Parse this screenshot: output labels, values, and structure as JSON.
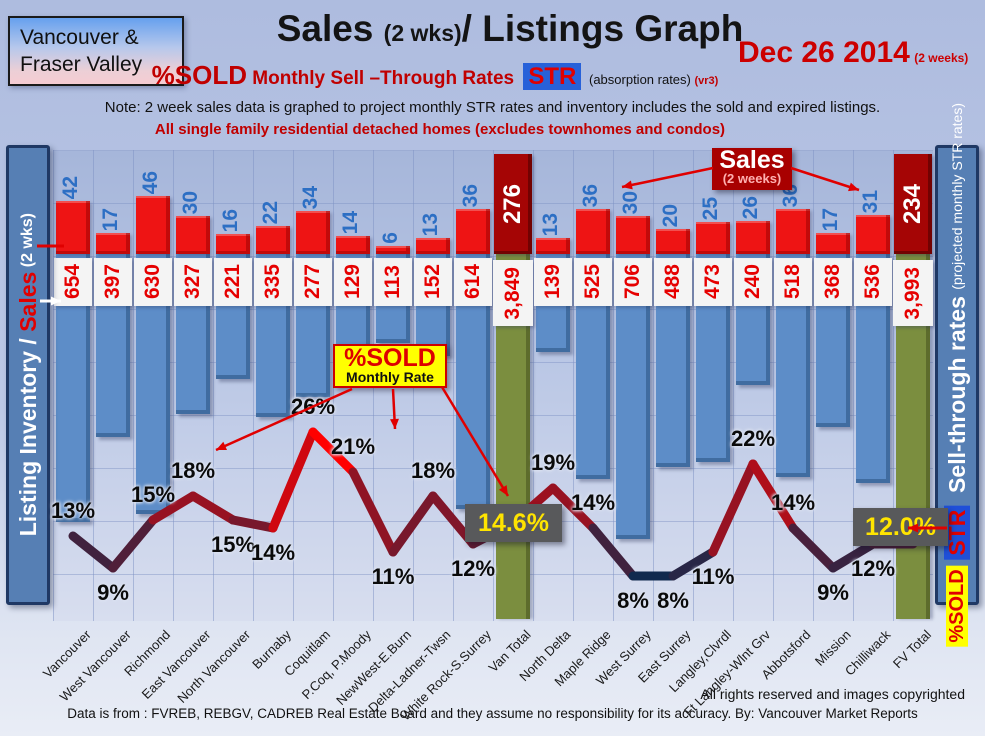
{
  "header": {
    "region_line1": "Vancouver &",
    "region_line2": "Fraser Valley",
    "title_main": "Sales ",
    "title_paren": "(2 wks)",
    "title_rest": "/ Listings Graph",
    "date": "Dec 26 2014",
    "date_note": "(2 weeks)",
    "subtitle_pct": "%SOLD",
    "subtitle_rates": " Monthly Sell –Through Rates ",
    "subtitle_str": "STR",
    "subtitle_absorption": " (absorption rates) ",
    "subtitle_version": "(vr3)",
    "note": "Note: 2 week sales data is graphed to project monthly STR rates and inventory includes the sold and expired listings.",
    "scope": "All single family residential detached homes (excludes townhomes and condos)"
  },
  "left_sidebar": {
    "label_white": "Listing Inventory / ",
    "label_red": "Sales",
    "label_suffix": " (2  wks)"
  },
  "right_sidebar": {
    "pct_sold": "%SOLD",
    "str_badge": "STR",
    "label_main": " Sell-through rates ",
    "label_note": "(projected monthly STR rates)"
  },
  "annotations": {
    "sales_callout_title": "Sales",
    "sales_callout_sub": "(2 weeks)",
    "pctsold_callout_title": "%SOLD",
    "pctsold_callout_sub": "Monthly Rate",
    "van_total_rate": "14.6%",
    "fv_total_rate": "12.0%"
  },
  "chart_data": {
    "type": "bar+line",
    "title": "Sales (2 wks) / Listings Graph",
    "categories": [
      "Vancouver",
      "West Vancouver",
      "Richmond",
      "East Vancouver",
      "North Vancouver",
      "Burnaby",
      "Coquitlam",
      "P.Coq, P.Moody",
      "NewWest-E.Burn",
      "Delta-Ladner-Twsn",
      "White Rock-S.Surrey",
      "Van Total",
      "North Delta",
      "Maple Ridge",
      "West Surrey",
      "East Surrey",
      "Langley,Clvrdl",
      "Ft Langley-Wlnt Grv",
      "Abbotsford",
      "Mission",
      "Chilliwack",
      "FV Total"
    ],
    "series": [
      {
        "name": "Sales (2 weeks)",
        "type": "bar",
        "color": "#ee1414",
        "total_color": "#a50505",
        "values": [
          42,
          17,
          46,
          30,
          16,
          22,
          34,
          14,
          6,
          13,
          36,
          276,
          13,
          36,
          30,
          20,
          25,
          26,
          36,
          17,
          31,
          234
        ]
      },
      {
        "name": "Listing Inventory",
        "type": "bar",
        "color": "#5d8dc8",
        "total_color": "#7b8e3f",
        "values": [
          654,
          397,
          630,
          327,
          221,
          335,
          277,
          129,
          113,
          152,
          614,
          3849,
          139,
          525,
          706,
          488,
          473,
          240,
          518,
          368,
          536,
          3993
        ],
        "labels": [
          "654",
          "397",
          "630",
          "327",
          "221",
          "335",
          "277",
          "129",
          "113",
          "152",
          "614",
          "3,849",
          "139",
          "525",
          "706",
          "488",
          "473",
          "240",
          "518",
          "368",
          "536",
          "3,993"
        ]
      },
      {
        "name": "%SOLD Monthly Rate",
        "type": "line",
        "color_low": "#102a4e",
        "color_high": "#ff0000",
        "values": [
          13,
          9,
          15,
          18,
          15,
          14,
          26,
          21,
          11,
          18,
          12,
          14.6,
          19,
          14,
          8,
          8,
          11,
          22,
          14,
          9,
          12,
          12
        ],
        "labels": [
          "13%",
          "9%",
          "15%",
          "18%",
          "15%",
          "14%",
          "26%",
          "21%",
          "11%",
          "18%",
          "12%",
          "14.6%",
          "19%",
          "14%",
          "8%",
          "8%",
          "11%",
          "22%",
          "14%",
          "9%",
          "12%",
          "12.0%"
        ]
      }
    ],
    "totals_index": [
      11,
      21
    ],
    "label_side": [
      "above",
      "below",
      "above",
      "above",
      "below",
      "below",
      "above",
      "above",
      "below",
      "above",
      "below",
      "box",
      "above",
      "above",
      "below",
      "below",
      "below",
      "above",
      "above",
      "below",
      "below",
      "box"
    ],
    "grid": true,
    "legend_position": "none"
  },
  "footer": {
    "rights": "All rights reserved and  images copyrighted",
    "source": "Data is from : FVREB, REBGV, CADREB Real Estate Board and they assume no responsibility for its accuracy. By: Vancouver Market Reports"
  }
}
